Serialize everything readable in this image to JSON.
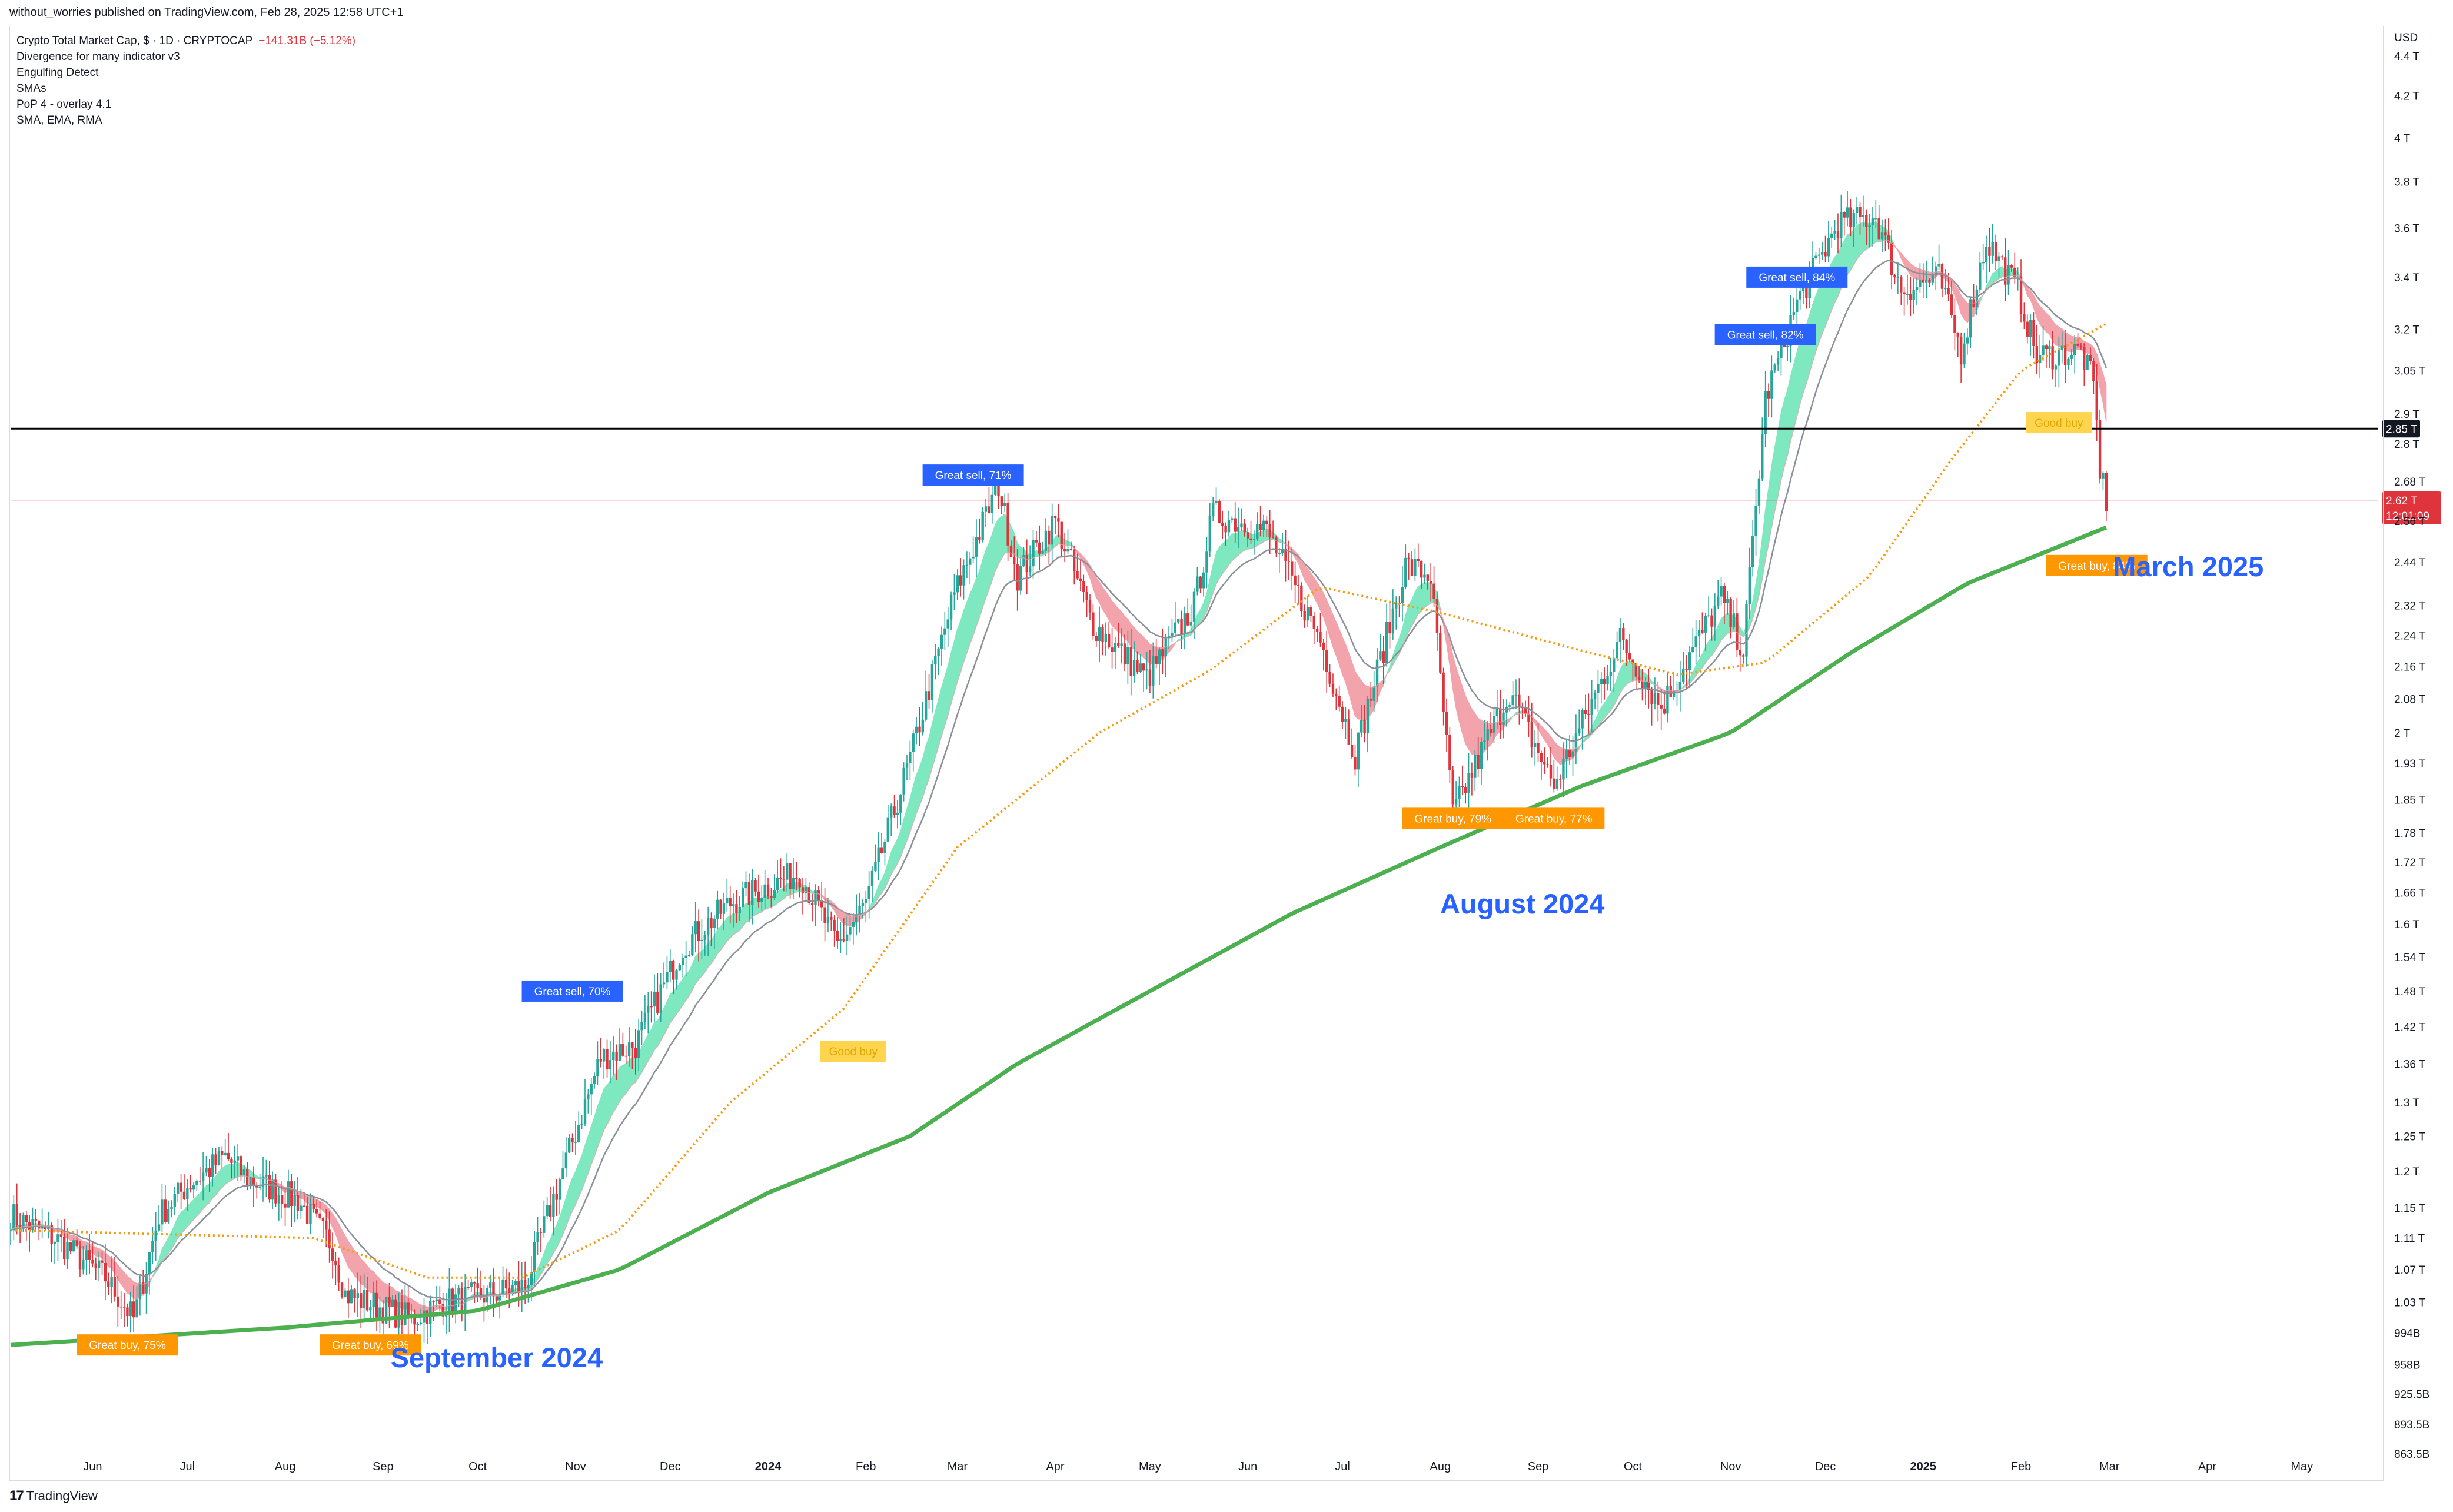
{
  "header": {
    "published": "without_worries published on TradingView.com, Feb 28, 2025 12:58 UTC+1"
  },
  "legend": {
    "symbol": "Crypto Total Market Cap, $ · 1D · CRYPTOCAP",
    "change": "−141.31B (−5.12%)",
    "indicators": [
      "Divergence for many indicator v3",
      "Engulfing Detect",
      "SMAs",
      "PoP 4 - overlay 4.1",
      "SMA, EMA, RMA"
    ]
  },
  "footer": {
    "brand": "TradingView"
  },
  "colors": {
    "up": "#26a69a",
    "down": "#e0343d",
    "bull_fill": "#7ee8c1",
    "bear_fill": "#f2a3ab",
    "sma200": "#4caf50",
    "orange_ma": "#f39c12",
    "sell_label": "#2962ff",
    "buy_label": "#ff9800",
    "good_buy": "#ffd54f",
    "annotation": "#2962ff"
  },
  "chart_data": {
    "type": "line",
    "title": "Crypto Total Market Cap, $ · 1D · CRYPTOCAP",
    "y_scale": "log",
    "y_unit": "USD",
    "ylim": [
      840000000000,
      4550000000000
    ],
    "x_range": [
      "2023-05-06",
      "2025-05-25"
    ],
    "y_ticks": [
      "4.4 T",
      "4.2 T",
      "4 T",
      "3.8 T",
      "3.6 T",
      "3.4 T",
      "3.2 T",
      "3.05 T",
      "2.9 T",
      "2.8 T",
      "2.68 T",
      "2.56 T",
      "2.44 T",
      "2.32 T",
      "2.24 T",
      "2.16 T",
      "2.08 T",
      "2 T",
      "1.93 T",
      "1.85 T",
      "1.78 T",
      "1.72 T",
      "1.66 T",
      "1.6 T",
      "1.54 T",
      "1.48 T",
      "1.42 T",
      "1.36 T",
      "1.3 T",
      "1.25 T",
      "1.2 T",
      "1.15 T",
      "1.11 T",
      "1.07 T",
      "1.03 T",
      "994B",
      "958B",
      "925.5B",
      "893.5B",
      "863.5B"
    ],
    "y_tick_values": [
      4400000000000.0,
      4200000000000.0,
      4000000000000.0,
      3800000000000.0,
      3600000000000.0,
      3400000000000.0,
      3200000000000.0,
      3050000000000.0,
      2900000000000.0,
      2800000000000.0,
      2680000000000.0,
      2560000000000.0,
      2440000000000.0,
      2320000000000.0,
      2240000000000.0,
      2160000000000.0,
      2080000000000.0,
      2000000000000.0,
      1930000000000.0,
      1850000000000.0,
      1780000000000.0,
      1720000000000.0,
      1660000000000.0,
      1600000000000.0,
      1540000000000.0,
      1480000000000.0,
      1420000000000.0,
      1360000000000.0,
      1300000000000.0,
      1250000000000.0,
      1200000000000.0,
      1150000000000.0,
      1110000000000.0,
      1070000000000.0,
      1030000000000.0,
      994000000000.0,
      958000000000.0,
      925500000000.0,
      893500000000.0,
      863500000000.0
    ],
    "x_ticks": [
      {
        "label": "Jun",
        "date": "2023-06-01"
      },
      {
        "label": "Jul",
        "date": "2023-07-01"
      },
      {
        "label": "Aug",
        "date": "2023-08-01"
      },
      {
        "label": "Sep",
        "date": "2023-09-01"
      },
      {
        "label": "Oct",
        "date": "2023-10-01"
      },
      {
        "label": "Nov",
        "date": "2023-11-01"
      },
      {
        "label": "Dec",
        "date": "2023-12-01"
      },
      {
        "label": "2024",
        "date": "2024-01-01",
        "bold": true
      },
      {
        "label": "Feb",
        "date": "2024-02-01"
      },
      {
        "label": "Mar",
        "date": "2024-03-01"
      },
      {
        "label": "Apr",
        "date": "2024-04-01"
      },
      {
        "label": "May",
        "date": "2024-05-01"
      },
      {
        "label": "Jun",
        "date": "2024-06-01"
      },
      {
        "label": "Jul",
        "date": "2024-07-01"
      },
      {
        "label": "Aug",
        "date": "2024-08-01"
      },
      {
        "label": "Sep",
        "date": "2024-09-01"
      },
      {
        "label": "Oct",
        "date": "2024-10-01"
      },
      {
        "label": "Nov",
        "date": "2024-11-01"
      },
      {
        "label": "Dec",
        "date": "2024-12-01"
      },
      {
        "label": "2025",
        "date": "2025-01-01",
        "bold": true
      },
      {
        "label": "Feb",
        "date": "2025-02-01"
      },
      {
        "label": "Mar",
        "date": "2025-03-01"
      },
      {
        "label": "Apr",
        "date": "2025-04-01"
      },
      {
        "label": "May",
        "date": "2025-05-01"
      }
    ],
    "price_points": [
      [
        "2023-05-06",
        1140000000000.0
      ],
      [
        "2023-05-20",
        1110000000000.0
      ],
      [
        "2023-06-05",
        1060000000000.0
      ],
      [
        "2023-06-14",
        1010000000000.0
      ],
      [
        "2023-06-22",
        1140000000000.0
      ],
      [
        "2023-07-01",
        1180000000000.0
      ],
      [
        "2023-07-13",
        1220000000000.0
      ],
      [
        "2023-07-20",
        1190000000000.0
      ],
      [
        "2023-08-05",
        1160000000000.0
      ],
      [
        "2023-08-16",
        1100000000000.0
      ],
      [
        "2023-08-20",
        1040000000000.0
      ],
      [
        "2023-09-10",
        1010000000000.0
      ],
      [
        "2023-09-20",
        1030000000000.0
      ],
      [
        "2023-10-05",
        1040000000000.0
      ],
      [
        "2023-10-16",
        1050000000000.0
      ],
      [
        "2023-10-24",
        1150000000000.0
      ],
      [
        "2023-11-09",
        1370000000000.0
      ],
      [
        "2023-11-20",
        1390000000000.0
      ],
      [
        "2023-12-05",
        1560000000000.0
      ],
      [
        "2023-12-20",
        1640000000000.0
      ],
      [
        "2024-01-11",
        1700000000000.0
      ],
      [
        "2024-01-23",
        1560000000000.0
      ],
      [
        "2024-02-01",
        1640000000000.0
      ],
      [
        "2024-02-15",
        1940000000000.0
      ],
      [
        "2024-02-29",
        2350000000000.0
      ],
      [
        "2024-03-14",
        2670000000000.0
      ],
      [
        "2024-03-20",
        2400000000000.0
      ],
      [
        "2024-04-01",
        2560000000000.0
      ],
      [
        "2024-04-13",
        2270000000000.0
      ],
      [
        "2024-04-30",
        2130000000000.0
      ],
      [
        "2024-05-15",
        2320000000000.0
      ],
      [
        "2024-05-21",
        2580000000000.0
      ],
      [
        "2024-06-07",
        2530000000000.0
      ],
      [
        "2024-06-24",
        2230000000000.0
      ],
      [
        "2024-07-05",
        1950000000000.0
      ],
      [
        "2024-07-21",
        2430000000000.0
      ],
      [
        "2024-07-29",
        2400000000000.0
      ],
      [
        "2024-08-05",
        1820000000000.0
      ],
      [
        "2024-08-23",
        2100000000000.0
      ],
      [
        "2024-09-06",
        1880000000000.0
      ],
      [
        "2024-09-27",
        2230000000000.0
      ],
      [
        "2024-10-10",
        2060000000000.0
      ],
      [
        "2024-10-29",
        2340000000000.0
      ],
      [
        "2024-11-05",
        2200000000000.0
      ],
      [
        "2024-11-12",
        2950000000000.0
      ],
      [
        "2024-11-22",
        3300000000000.0
      ],
      [
        "2024-12-05",
        3620000000000.0
      ],
      [
        "2024-12-17",
        3650000000000.0
      ],
      [
        "2024-12-25",
        3350000000000.0
      ],
      [
        "2025-01-06",
        3400000000000.0
      ],
      [
        "2025-01-13",
        3120000000000.0
      ],
      [
        "2025-01-21",
        3550000000000.0
      ],
      [
        "2025-01-31",
        3350000000000.0
      ],
      [
        "2025-02-06",
        3100000000000.0
      ],
      [
        "2025-02-20",
        3120000000000.0
      ],
      [
        "2025-02-24",
        3000000000000.0
      ],
      [
        "2025-02-26",
        2720000000000.0
      ],
      [
        "2025-02-28",
        2620000000000.0
      ]
    ],
    "series": [
      {
        "values": [
          [
            "2023-05-06",
            980000000000.0
          ],
          [
            "2023-08-01",
            1000000000000.0
          ],
          [
            "2023-10-01",
            1020000000000.0
          ],
          [
            "2023-11-15",
            1070000000000.0
          ],
          [
            "2024-01-01",
            1170000000000.0
          ],
          [
            "2024-02-15",
            1250000000000.0
          ],
          [
            "2024-03-20",
            1360000000000.0
          ],
          [
            "2024-05-01",
            1480000000000.0
          ],
          [
            "2024-06-15",
            1620000000000.0
          ],
          [
            "2024-08-01",
            1750000000000.0
          ],
          [
            "2024-09-15",
            1880000000000.0
          ],
          [
            "2024-11-01",
            2000000000000.0
          ],
          [
            "2024-12-10",
            2200000000000.0
          ],
          [
            "2025-01-15",
            2380000000000.0
          ],
          [
            "2025-02-28",
            2540000000000.0
          ]
        ]
      },
      {
        "values": [
          [
            "2023-05-06",
            1120000000000.0
          ],
          [
            "2023-08-10",
            1110000000000.0
          ],
          [
            "2023-09-15",
            1060000000000.0
          ],
          [
            "2023-10-15",
            1060000000000.0
          ],
          [
            "2023-11-15",
            1120000000000.0
          ],
          [
            "2023-12-20",
            1300000000000.0
          ],
          [
            "2024-01-25",
            1450000000000.0
          ],
          [
            "2024-03-01",
            1750000000000.0
          ],
          [
            "2024-04-15",
            2000000000000.0
          ],
          [
            "2024-05-20",
            2150000000000.0
          ],
          [
            "2024-06-24",
            2370000000000.0
          ],
          [
            "2024-08-01",
            2300000000000.0
          ],
          [
            "2024-09-15",
            2200000000000.0
          ],
          [
            "2024-10-15",
            2140000000000.0
          ],
          [
            "2024-11-12",
            2170000000000.0
          ],
          [
            "2024-12-15",
            2400000000000.0
          ],
          [
            "2025-01-10",
            2750000000000.0
          ],
          [
            "2025-02-01",
            3050000000000.0
          ],
          [
            "2025-02-28",
            3220000000000.0
          ]
        ]
      }
    ],
    "horizontal_line": {
      "value": 2850000000000.0,
      "label": "2.85 T"
    },
    "last_price": {
      "value": 2620000000000.0,
      "label": "2.62 T",
      "countdown": "12:01:09"
    },
    "signal_labels": [
      {
        "text": "Great sell, 70%",
        "type": "sell",
        "date": "2023-10-31",
        "price": 1480000000000.0
      },
      {
        "text": "Great sell, 71%",
        "type": "sell",
        "date": "2024-03-06",
        "price": 2700000000000.0
      },
      {
        "text": "Great sell, 82%",
        "type": "sell",
        "date": "2024-11-12",
        "price": 3180000000000.0
      },
      {
        "text": "Great sell, 84%",
        "type": "sell",
        "date": "2024-11-22",
        "price": 3400000000000.0
      },
      {
        "text": "Great buy, 75%",
        "type": "buy",
        "date": "2023-06-12",
        "price": 980000000000.0
      },
      {
        "text": "Great buy, 69%",
        "type": "buy",
        "date": "2023-08-28",
        "price": 980000000000.0
      },
      {
        "text": "Great buy, 79%",
        "type": "buy",
        "date": "2024-08-05",
        "price": 1810000000000.0
      },
      {
        "text": "Great buy, 77%",
        "type": "buy",
        "date": "2024-09-06",
        "price": 1810000000000.0
      },
      {
        "text": "Great buy, 84%",
        "type": "buy",
        "date": "2025-02-25",
        "price": 2430000000000.0
      },
      {
        "text": "Good buy",
        "type": "good",
        "date": "2024-01-28",
        "price": 1380000000000.0
      },
      {
        "text": "Good buy",
        "type": "good",
        "date": "2025-02-13",
        "price": 2870000000000.0
      }
    ],
    "annotations": [
      {
        "text": "September  2024",
        "date": "2023-10-07",
        "price": 955000000000.0
      },
      {
        "text": "August 2024",
        "date": "2024-08-27",
        "price": 1620000000000.0
      },
      {
        "text": "March 2025",
        "date": "2025-03-26",
        "price": 2400000000000.0
      }
    ]
  }
}
